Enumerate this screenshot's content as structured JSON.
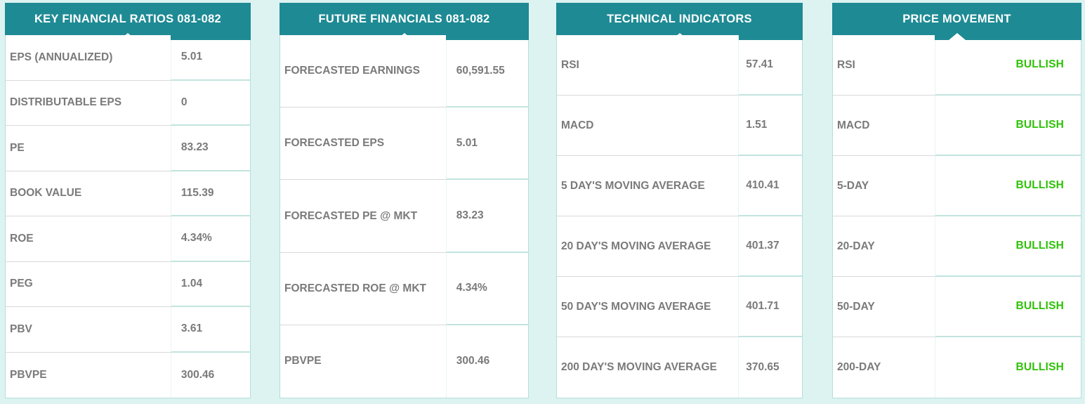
{
  "colors": {
    "accent_teal": "#1e8a94",
    "page_background": "#dcf3f2",
    "text_gray": "#7a7a7a",
    "bullish_green": "#2ec206",
    "separator_gray": "#d9d9d9",
    "separator_teal": "#c2e4de",
    "panel_border": "#b8ded9"
  },
  "panels": [
    {
      "title": "KEY FINANCIAL RATIOS 081-082",
      "rows": [
        {
          "label": "EPS (ANNUALIZED)",
          "value": "5.01"
        },
        {
          "label": "DISTRIBUTABLE EPS",
          "value": "0"
        },
        {
          "label": "PE",
          "value": "83.23"
        },
        {
          "label": "BOOK VALUE",
          "value": "115.39"
        },
        {
          "label": "ROE",
          "value": "4.34%"
        },
        {
          "label": "PEG",
          "value": "1.04"
        },
        {
          "label": "PBV",
          "value": "3.61"
        },
        {
          "label": "PBVPE",
          "value": "300.46"
        }
      ]
    },
    {
      "title": "FUTURE FINANCIALS 081-082",
      "rows": [
        {
          "label": "FORECASTED EARNINGS",
          "value": "60,591.55"
        },
        {
          "label": "FORECASTED EPS",
          "value": "5.01"
        },
        {
          "label": "FORECASTED PE @ MKT",
          "value": "83.23"
        },
        {
          "label": "FORECASTED ROE @ MKT",
          "value": "4.34%"
        },
        {
          "label": "PBVPE",
          "value": "300.46"
        }
      ]
    },
    {
      "title": "TECHNICAL INDICATORS",
      "rows": [
        {
          "label": "RSI",
          "value": "57.41"
        },
        {
          "label": "MACD",
          "value": "1.51"
        },
        {
          "label": "5 DAY'S MOVING AVERAGE",
          "value": "410.41"
        },
        {
          "label": "20 DAY'S MOVING AVERAGE",
          "value": "401.37"
        },
        {
          "label": "50 DAY'S MOVING AVERAGE",
          "value": "401.71"
        },
        {
          "label": "200 DAY'S MOVING AVERAGE",
          "value": "370.65"
        }
      ]
    },
    {
      "title": "PRICE MOVEMENT",
      "rows": [
        {
          "label": "RSI",
          "value": "BULLISH"
        },
        {
          "label": "MACD",
          "value": "BULLISH"
        },
        {
          "label": "5-DAY",
          "value": "BULLISH"
        },
        {
          "label": "20-DAY",
          "value": "BULLISH"
        },
        {
          "label": "50-DAY",
          "value": "BULLISH"
        },
        {
          "label": "200-DAY",
          "value": "BULLISH"
        }
      ]
    }
  ]
}
